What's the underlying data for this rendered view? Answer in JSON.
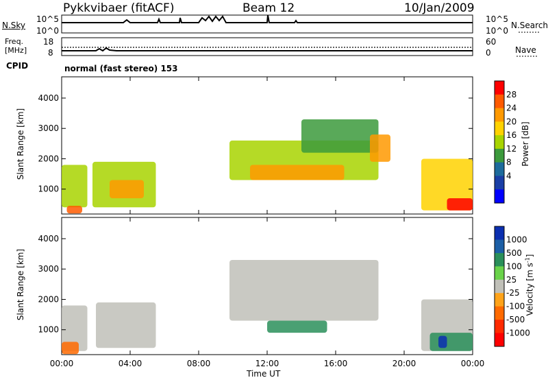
{
  "header": {
    "station": "Pykkvibaer (fitACF)",
    "beam": "Beam 12",
    "date": "10/Jan/2009"
  },
  "strips": {
    "nsky_label": "N.Sky",
    "nsearch_label": "N.Search",
    "nsky_ticks": [
      "10^5",
      "10^0"
    ],
    "nsearch_ticks": [
      "10^5",
      "10^0"
    ],
    "freq_label_line1": "Freq.",
    "freq_label_line2": "[MHz]",
    "freq_ticks": [
      "18",
      "8"
    ],
    "nave_label": "Nave",
    "nave_ticks": [
      "60",
      "0"
    ],
    "cpid_label": "CPID",
    "cpid_text": "normal (fast stereo) 153"
  },
  "power_panel": {
    "ylabel": "Slant Range [km]",
    "yticks": [
      "4000",
      "3000",
      "2000",
      "1000"
    ],
    "colorbar_label": "Power [dB]",
    "colorbar_ticks": [
      "28",
      "24",
      "20",
      "16",
      "12",
      "8",
      "4"
    ],
    "colorbar_colors": [
      "#ff0000",
      "#ff5a00",
      "#ff9900",
      "#ffd200",
      "#a8d400",
      "#3c9a3c",
      "#1d6b9c",
      "#1a3fa6",
      "#0000ff"
    ]
  },
  "velocity_panel": {
    "ylabel": "Slant Range [km]",
    "yticks": [
      "4000",
      "3000",
      "2000",
      "1000"
    ],
    "colorbar_label": "Velocity [m s",
    "colorbar_label_sup": "-1",
    "colorbar_label_end": "]",
    "colorbar_ticks": [
      "1000",
      "500",
      "100",
      "25",
      "-25",
      "-100",
      "-500",
      "-1000"
    ],
    "colorbar_colors": [
      "#0b2fb0",
      "#1c5fa6",
      "#2a8f5a",
      "#6ad34a",
      "#c0c0b8",
      "#ffa31a",
      "#ff6a00",
      "#ff2a00",
      "#ff0000"
    ]
  },
  "xaxis": {
    "ticks": [
      "00:00",
      "04:00",
      "08:00",
      "12:00",
      "16:00",
      "20:00",
      "00:00"
    ],
    "label": "Time UT"
  },
  "chart_data": [
    {
      "type": "heatmap",
      "name": "power",
      "title": "Power [dB]",
      "xlabel": "Time UT",
      "ylabel": "Slant Range [km]",
      "xlim": [
        0,
        24
      ],
      "ylim": [
        180,
        4700
      ],
      "zlim": [
        0,
        30
      ],
      "x_unit": "hours UT",
      "regions": [
        {
          "x": [
            0.0,
            1.5
          ],
          "y": [
            400,
            1800
          ],
          "value": 16
        },
        {
          "x": [
            0.3,
            1.2
          ],
          "y": [
            200,
            450
          ],
          "value": 24
        },
        {
          "x": [
            1.8,
            5.5
          ],
          "y": [
            400,
            1900
          ],
          "value": 14
        },
        {
          "x": [
            2.8,
            4.8
          ],
          "y": [
            700,
            1300
          ],
          "value": 20
        },
        {
          "x": [
            9.8,
            18.5
          ],
          "y": [
            1300,
            2600
          ],
          "value": 14
        },
        {
          "x": [
            11.0,
            16.5
          ],
          "y": [
            1300,
            1800
          ],
          "value": 22
        },
        {
          "x": [
            14.0,
            18.5
          ],
          "y": [
            2200,
            3300
          ],
          "value": 12
        },
        {
          "x": [
            18.0,
            19.2
          ],
          "y": [
            1900,
            2800
          ],
          "value": 22
        },
        {
          "x": [
            21.0,
            24.0
          ],
          "y": [
            300,
            2000
          ],
          "value": 18
        },
        {
          "x": [
            22.5,
            24.0
          ],
          "y": [
            300,
            700
          ],
          "value": 28
        }
      ]
    },
    {
      "type": "heatmap",
      "name": "velocity",
      "title": "Velocity [m s-1]",
      "xlabel": "Time UT",
      "ylabel": "Slant Range [km]",
      "xlim": [
        0,
        24
      ],
      "ylim": [
        180,
        4700
      ],
      "zlim": [
        -1000,
        1000
      ],
      "x_unit": "hours UT",
      "regions": [
        {
          "x": [
            0.0,
            1.5
          ],
          "y": [
            300,
            1800
          ],
          "value": 0
        },
        {
          "x": [
            0.0,
            1.0
          ],
          "y": [
            200,
            600
          ],
          "value": -500
        },
        {
          "x": [
            2.0,
            5.5
          ],
          "y": [
            400,
            1900
          ],
          "value": 0
        },
        {
          "x": [
            9.8,
            18.5
          ],
          "y": [
            1300,
            3300
          ],
          "value": 0
        },
        {
          "x": [
            12.0,
            15.5
          ],
          "y": [
            900,
            1300
          ],
          "value": 200
        },
        {
          "x": [
            21.0,
            24.0
          ],
          "y": [
            300,
            2000
          ],
          "value": 0
        },
        {
          "x": [
            21.5,
            24.0
          ],
          "y": [
            300,
            900
          ],
          "value": 300
        },
        {
          "x": [
            22.0,
            22.5
          ],
          "y": [
            400,
            800
          ],
          "value": 1000
        }
      ]
    }
  ]
}
